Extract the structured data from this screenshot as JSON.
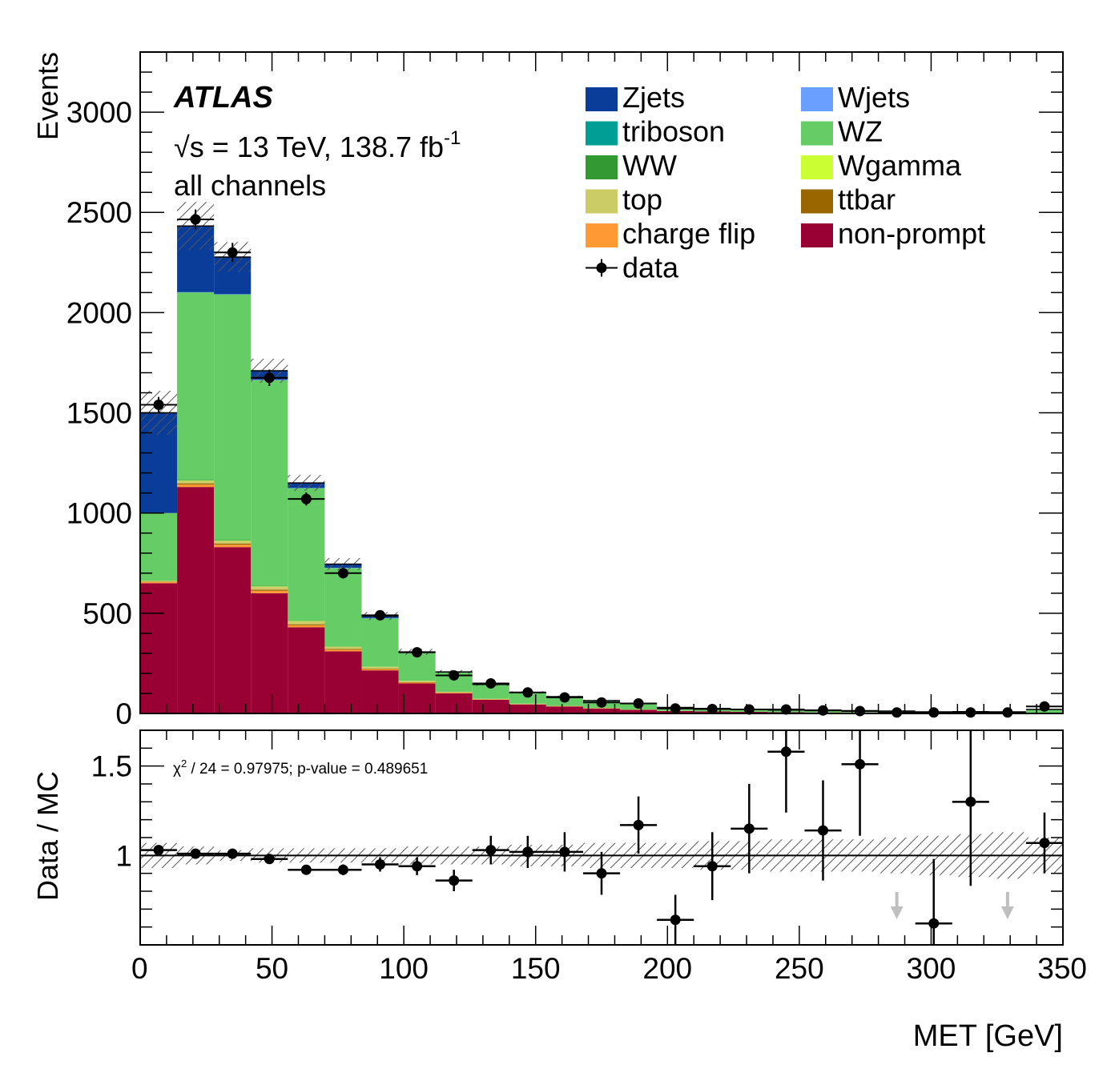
{
  "chart_data": [
    {
      "type": "bar",
      "stacked": true,
      "experiment": "ATLAS",
      "energy_label": "√s = 13 TeV, 138.7 fb",
      "energy_superscript": "-1",
      "channel_label": "all channels",
      "xlabel": "MET [GeV]",
      "ylabel": "Events",
      "xlim": [
        0,
        350
      ],
      "ylim": [
        0,
        3300
      ],
      "x_ticks": [
        "0",
        "50",
        "100",
        "150",
        "200",
        "250",
        "300",
        "350"
      ],
      "y_ticks": [
        "0",
        "500",
        "1000",
        "1500",
        "2000",
        "2500",
        "3000"
      ],
      "bin_edges": [
        0,
        14,
        28,
        42,
        56,
        70,
        84,
        98,
        112,
        126,
        140,
        154,
        168,
        182,
        196,
        210,
        224,
        238,
        252,
        266,
        280,
        294,
        308,
        322,
        336,
        350
      ],
      "legend": [
        {
          "name": "Zjets",
          "color": "#0a3d9a"
        },
        {
          "name": "Wjets",
          "color": "#6a9eff"
        },
        {
          "name": "triboson",
          "color": "#009e94"
        },
        {
          "name": "WZ",
          "color": "#66cc66"
        },
        {
          "name": "WW",
          "color": "#339933"
        },
        {
          "name": "Wgamma",
          "color": "#ccff33"
        },
        {
          "name": "top",
          "color": "#cccc66"
        },
        {
          "name": "ttbar",
          "color": "#996600"
        },
        {
          "name": "charge flip",
          "color": "#ff9933"
        },
        {
          "name": "non-prompt",
          "color": "#990033"
        },
        {
          "name": "data",
          "color": "#000000"
        }
      ],
      "series": [
        {
          "name": "non-prompt",
          "color": "#990033",
          "values": [
            650,
            1130,
            830,
            600,
            430,
            310,
            215,
            150,
            100,
            68,
            45,
            35,
            25,
            18,
            12,
            10,
            8,
            6,
            5,
            5,
            4,
            3,
            3,
            3,
            3
          ]
        },
        {
          "name": "charge flip",
          "color": "#ff9933",
          "values": [
            6,
            12,
            12,
            12,
            10,
            8,
            6,
            4,
            3,
            2,
            1,
            1,
            1,
            1,
            0,
            0,
            0,
            0,
            0,
            0,
            0,
            0,
            0,
            0,
            0
          ]
        },
        {
          "name": "ttbar",
          "color": "#996600",
          "values": [
            2,
            6,
            6,
            6,
            5,
            4,
            3,
            2,
            2,
            1,
            1,
            1,
            1,
            0,
            0,
            0,
            0,
            0,
            0,
            0,
            0,
            0,
            0,
            0,
            0
          ]
        },
        {
          "name": "top",
          "color": "#cccc66",
          "values": [
            3,
            12,
            12,
            14,
            14,
            10,
            8,
            5,
            3,
            2,
            2,
            1,
            1,
            1,
            1,
            0,
            0,
            0,
            0,
            0,
            0,
            0,
            0,
            0,
            0
          ]
        },
        {
          "name": "Wgamma",
          "color": "#ccff33",
          "values": [
            1,
            2,
            2,
            2,
            2,
            1,
            1,
            1,
            0,
            0,
            0,
            0,
            0,
            0,
            0,
            0,
            0,
            0,
            0,
            0,
            0,
            0,
            0,
            0,
            0
          ]
        },
        {
          "name": "WW",
          "color": "#339933",
          "values": [
            1,
            3,
            3,
            3,
            2,
            2,
            1,
            1,
            1,
            0,
            0,
            0,
            0,
            0,
            0,
            0,
            0,
            0,
            0,
            0,
            0,
            0,
            0,
            0,
            0
          ]
        },
        {
          "name": "WZ",
          "color": "#66cc66",
          "values": [
            337,
            935,
            1225,
            1025,
            660,
            390,
            240,
            138,
            96,
            70,
            55,
            45,
            36,
            30,
            17,
            15,
            13,
            11,
            12,
            9,
            8,
            5,
            6,
            5,
            17
          ]
        },
        {
          "name": "triboson",
          "color": "#009e94",
          "values": [
            0,
            1,
            1,
            1,
            1,
            1,
            1,
            1,
            0,
            0,
            0,
            0,
            0,
            0,
            0,
            0,
            0,
            0,
            0,
            0,
            0,
            0,
            0,
            0,
            0
          ]
        },
        {
          "name": "Wjets",
          "color": "#6a9eff",
          "values": [
            0,
            1,
            1,
            2,
            1,
            1,
            1,
            0,
            0,
            0,
            0,
            0,
            0,
            0,
            0,
            0,
            0,
            0,
            0,
            0,
            0,
            0,
            0,
            0,
            0
          ]
        },
        {
          "name": "Zjets",
          "color": "#0a3d9a",
          "values": [
            500,
            330,
            185,
            45,
            25,
            18,
            10,
            5,
            2,
            2,
            1,
            1,
            0,
            0,
            0,
            0,
            0,
            0,
            0,
            0,
            0,
            0,
            0,
            0,
            0
          ]
        }
      ],
      "mc_uncertainty": [
        110,
        120,
        75,
        60,
        40,
        30,
        20,
        15,
        10,
        8,
        6,
        5,
        4,
        3,
        3,
        2,
        2,
        2,
        2,
        2,
        2,
        2,
        2,
        2,
        2
      ],
      "data": {
        "x": [
          7,
          21,
          35,
          49,
          63,
          77,
          91,
          105,
          119,
          133,
          147,
          161,
          175,
          189,
          203,
          217,
          231,
          245,
          259,
          273,
          287,
          301,
          315,
          329,
          343
        ],
        "y": [
          1540,
          2465,
          2300,
          1675,
          1070,
          700,
          490,
          305,
          190,
          150,
          105,
          80,
          55,
          50,
          25,
          22,
          20,
          20,
          15,
          12,
          5,
          5,
          5,
          5,
          35
        ]
      }
    },
    {
      "type": "scatter",
      "panel": "ratio",
      "ylabel": "Data / MC",
      "xlim": [
        0,
        350
      ],
      "ylim": [
        0.5,
        1.7
      ],
      "y_ticks": [
        "1",
        "1.5"
      ],
      "annotation": "χ² / 24 = 0.97975; p-value = 0.489651",
      "annotation_prefix": "χ",
      "annotation_superscript": "2",
      "annotation_rest": " / 24 = 0.97975; p-value = 0.489651",
      "reference_line": 1,
      "x": [
        7,
        21,
        35,
        49,
        63,
        77,
        91,
        105,
        119,
        133,
        147,
        161,
        175,
        189,
        203,
        217,
        231,
        245,
        259,
        273,
        301,
        315,
        343
      ],
      "y": [
        1.03,
        1.01,
        1.01,
        0.98,
        0.92,
        0.92,
        0.95,
        0.94,
        0.86,
        1.03,
        1.02,
        1.02,
        0.9,
        1.17,
        0.64,
        0.94,
        1.15,
        1.58,
        1.14,
        1.51,
        0.62,
        1.3,
        1.07
      ],
      "y_err": [
        0.02,
        0.02,
        0.02,
        0.02,
        0.02,
        0.03,
        0.04,
        0.05,
        0.06,
        0.08,
        0.09,
        0.11,
        0.12,
        0.16,
        0.14,
        0.19,
        0.25,
        0.34,
        0.28,
        0.4,
        0.36,
        0.47,
        0.17
      ],
      "mc_band": [
        0.07,
        0.05,
        0.03,
        0.04,
        0.04,
        0.04,
        0.04,
        0.05,
        0.05,
        0.05,
        0.06,
        0.06,
        0.07,
        0.07,
        0.07,
        0.08,
        0.08,
        0.09,
        0.09,
        0.09,
        0.1,
        0.11,
        0.12,
        0.13,
        0.1
      ],
      "off_scale_arrows_x": [
        287,
        329
      ],
      "off_scale_arrow_color": "#bfbfbf"
    }
  ]
}
